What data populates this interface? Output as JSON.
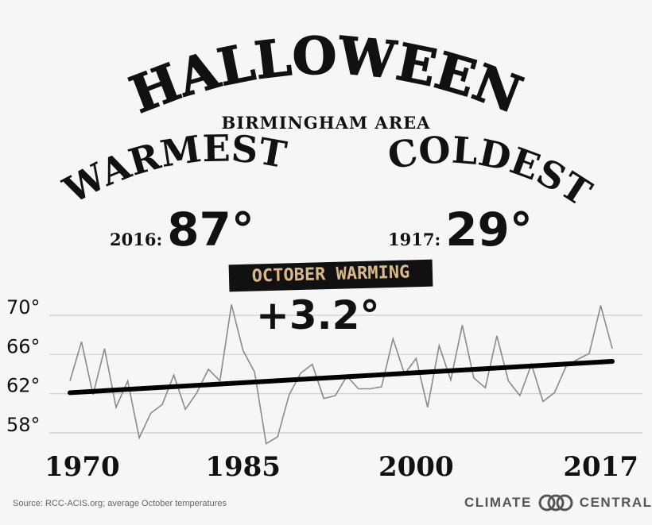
{
  "title": "HALLOWEEN",
  "subtitle": "BIRMINGHAM AREA",
  "warmest": {
    "label": "WARMEST",
    "year": "2016:",
    "value": "87°"
  },
  "coldest": {
    "label": "COLDEST",
    "year": "1917:",
    "value": "29°"
  },
  "banner": "OCTOBER WARMING",
  "delta": "+3.2°",
  "footer": {
    "source": "Source: RCC-ACIS.org; average October temperatures",
    "brand": "CLIMATE CENTRAL"
  },
  "colors": {
    "background": "#f6f6f6",
    "ink": "#111111",
    "banner_text": "#d9b98a",
    "grid": "#cccccc",
    "data_line": "#8a8a8a",
    "trend_line": "#000000"
  },
  "chart_data": {
    "type": "line",
    "title": "OCTOBER WARMING",
    "x": [
      1970,
      1971,
      1972,
      1973,
      1974,
      1975,
      1976,
      1977,
      1978,
      1979,
      1980,
      1981,
      1982,
      1983,
      1984,
      1985,
      1986,
      1987,
      1988,
      1989,
      1990,
      1991,
      1992,
      1993,
      1994,
      1995,
      1996,
      1997,
      1998,
      1999,
      2000,
      2001,
      2002,
      2003,
      2004,
      2005,
      2006,
      2007,
      2008,
      2009,
      2010,
      2011,
      2012,
      2013,
      2014,
      2015,
      2016,
      2017
    ],
    "series": [
      {
        "values": [
          63.3,
          67.3,
          61.9,
          66.6,
          60.6,
          63.3,
          57.5,
          60.0,
          60.9,
          63.9,
          60.4,
          62.1,
          64.5,
          63.3,
          71.1,
          66.4,
          64.2,
          56.9,
          57.6,
          61.9,
          64.1,
          65.0,
          61.5,
          61.8,
          63.8,
          62.5,
          62.5,
          62.7,
          67.6,
          64.0,
          65.6,
          60.6,
          66.9,
          63.4,
          69.0,
          63.6,
          62.6,
          67.9,
          63.3,
          61.8,
          65.0,
          61.2,
          62.1,
          64.8,
          65.5,
          66.1,
          71.0,
          66.6
        ]
      },
      {
        "name": "trend",
        "values_endpoints": [
          [
            1970,
            62.1
          ],
          [
            2017,
            65.3
          ]
        ]
      }
    ],
    "xticks": [
      "1970",
      "1985",
      "2000",
      "2017"
    ],
    "yticks": [
      "58°",
      "62°",
      "66°",
      "70°"
    ],
    "ylim": [
      56,
      72
    ],
    "xlim": [
      1970,
      2017
    ],
    "grid": true,
    "annotation": "+3.2°"
  }
}
